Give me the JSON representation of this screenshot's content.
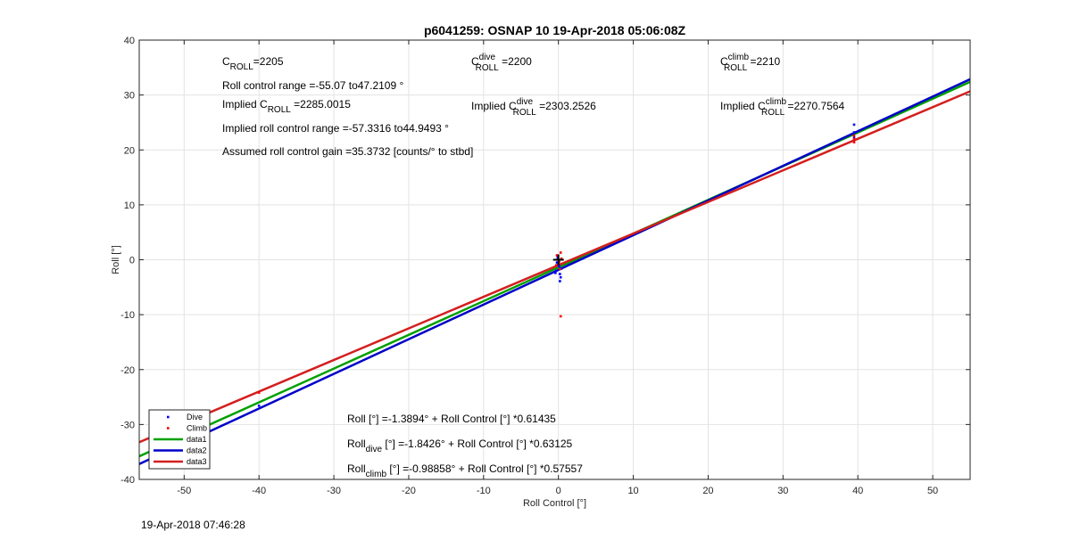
{
  "chart_data": {
    "type": "scatter",
    "title": "p6041259: OSNAP 10 19-Apr-2018 05:06:08Z",
    "xlabel": "Roll Control [°]",
    "ylabel": "Roll [°]",
    "xlim": [
      -56,
      55
    ],
    "ylim": [
      -40,
      40
    ],
    "xticks": [
      -50,
      -40,
      -30,
      -20,
      -10,
      0,
      10,
      20,
      30,
      40,
      50
    ],
    "yticks": [
      -40,
      -30,
      -20,
      -10,
      0,
      10,
      20,
      30,
      40
    ],
    "grid": true,
    "legend": {
      "placement": "bottom-left",
      "entries": [
        "Dive",
        "Climb",
        "data1",
        "data2",
        "data3"
      ]
    },
    "series": [
      {
        "name": "Dive",
        "style": "points",
        "color": "#0000ff",
        "points": [
          [
            -0.2,
            -0.5
          ],
          [
            0.1,
            -1.2
          ],
          [
            -0.3,
            -2.0
          ],
          [
            0.2,
            -2.6
          ],
          [
            0.3,
            -3.2
          ],
          [
            0.2,
            -3.9
          ],
          [
            -0.1,
            0.4
          ],
          [
            0.4,
            -1.6
          ],
          [
            -0.4,
            -2.4
          ],
          [
            0.0,
            -0.9
          ],
          [
            -40,
            -26.6
          ],
          [
            39.5,
            22.2
          ],
          [
            39.5,
            23.2
          ],
          [
            39.5,
            24.6
          ]
        ]
      },
      {
        "name": "Climb",
        "style": "points",
        "color": "#ff0000",
        "points": [
          [
            -0.2,
            0.8
          ],
          [
            0.3,
            1.3
          ],
          [
            0.1,
            -0.4
          ],
          [
            -0.3,
            -1.0
          ],
          [
            0.2,
            -1.7
          ],
          [
            0.4,
            0.2
          ],
          [
            0.3,
            -10.3
          ],
          [
            -40,
            -24.2
          ],
          [
            39.5,
            21.4
          ],
          [
            39.5,
            22.0
          ],
          [
            39.5,
            22.6
          ]
        ]
      },
      {
        "name": "data1",
        "style": "line",
        "color": "#00a000",
        "intercept": -1.3894,
        "slope": 0.61435
      },
      {
        "name": "data2",
        "style": "line",
        "color": "#0000c8",
        "intercept": -1.8426,
        "slope": 0.63125
      },
      {
        "name": "data3",
        "style": "line",
        "color": "#d41e1e",
        "intercept": -0.98858,
        "slope": 0.57557
      }
    ],
    "marker": {
      "x": 0,
      "y": 0,
      "symbol": "+",
      "color": "#000000"
    },
    "annotations": {
      "c_roll": {
        "pre": "C",
        "sub": "ROLL",
        "value": "=2205"
      },
      "roll_range": "Roll control range =-55.07 to47.2109 °",
      "implied_c_roll": {
        "pre": "Implied C",
        "sub": "ROLL",
        "value": " =2285.0015"
      },
      "implied_range": "Implied roll control range =-57.3316 to44.9493 °",
      "gain": "Assumed roll control gain =35.3732 [counts/° to stbd]",
      "c_dive": {
        "pre": "C",
        "sup": "dive",
        "sub": "ROLL",
        "value": " =2200"
      },
      "implied_c_dive": {
        "pre": "Implied C",
        "sup": "dive",
        "sub": "ROLL",
        "value": " =2303.2526"
      },
      "c_climb": {
        "pre": "C",
        "sup": "climb",
        "sub": "ROLL",
        "value": " =2210"
      },
      "implied_c_climb": {
        "pre": "Implied C",
        "sup": "climb",
        "sub": "ROLL",
        "value": " =2270.7564"
      },
      "fit_all": {
        "pre": "Roll",
        "sub": "",
        "value": " [°] =-1.3894° + Roll Control [°] *0.61435"
      },
      "fit_dive": {
        "pre": "Roll",
        "sub": "dive",
        "value": " [°] =-1.8426° + Roll Control [°] *0.63125"
      },
      "fit_climb": {
        "pre": "Roll",
        "sub": "climb",
        "value": " [°] =-0.98858° + Roll Control [°] *0.57557"
      }
    }
  },
  "timestamp": "19-Apr-2018 07:46:28"
}
